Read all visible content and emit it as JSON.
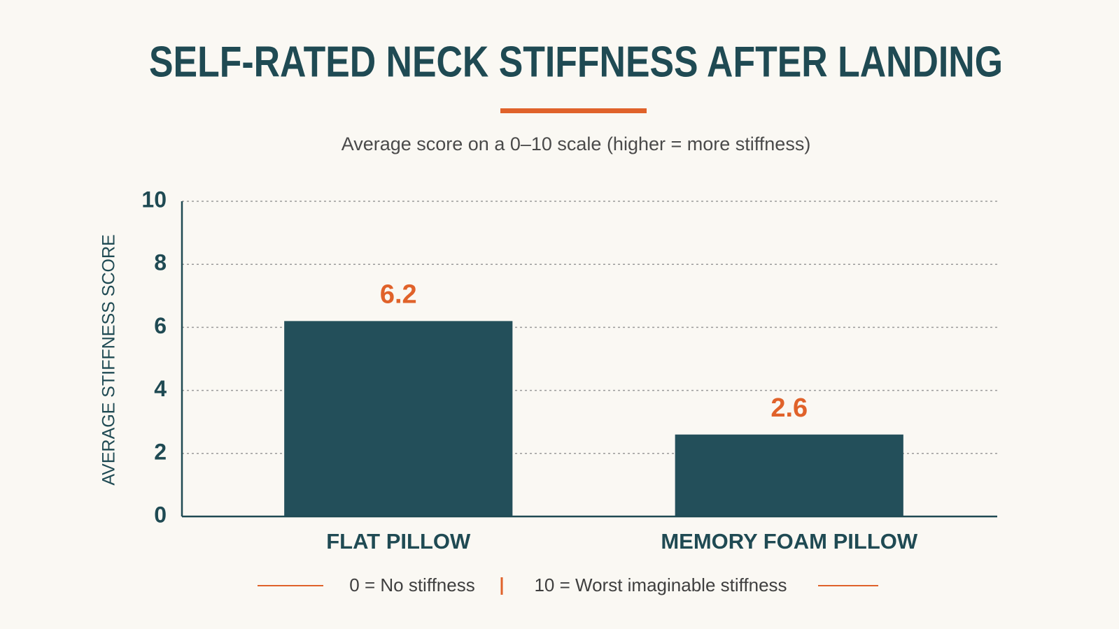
{
  "chart_data": {
    "type": "bar",
    "title": "SELF-RATED NECK STIFFNESS AFTER LANDING",
    "subtitle": "Average score on a 0–10 scale (higher = more stiffness)",
    "y_label": "AVERAGE STIFFNESS SCORE",
    "categories": [
      "FLAT PILLOW",
      "MEMORY FOAM PILLOW"
    ],
    "values": [
      6.2,
      2.6
    ],
    "color": "#234f5a",
    "label_color": "#e0622a",
    "ylim": [
      0,
      10
    ],
    "yticks": [
      0,
      2,
      4,
      6,
      8,
      10
    ],
    "grid": true,
    "footnotes": [
      "0 = No stiffness",
      "10 = Worst imaginable stiffness"
    ]
  }
}
